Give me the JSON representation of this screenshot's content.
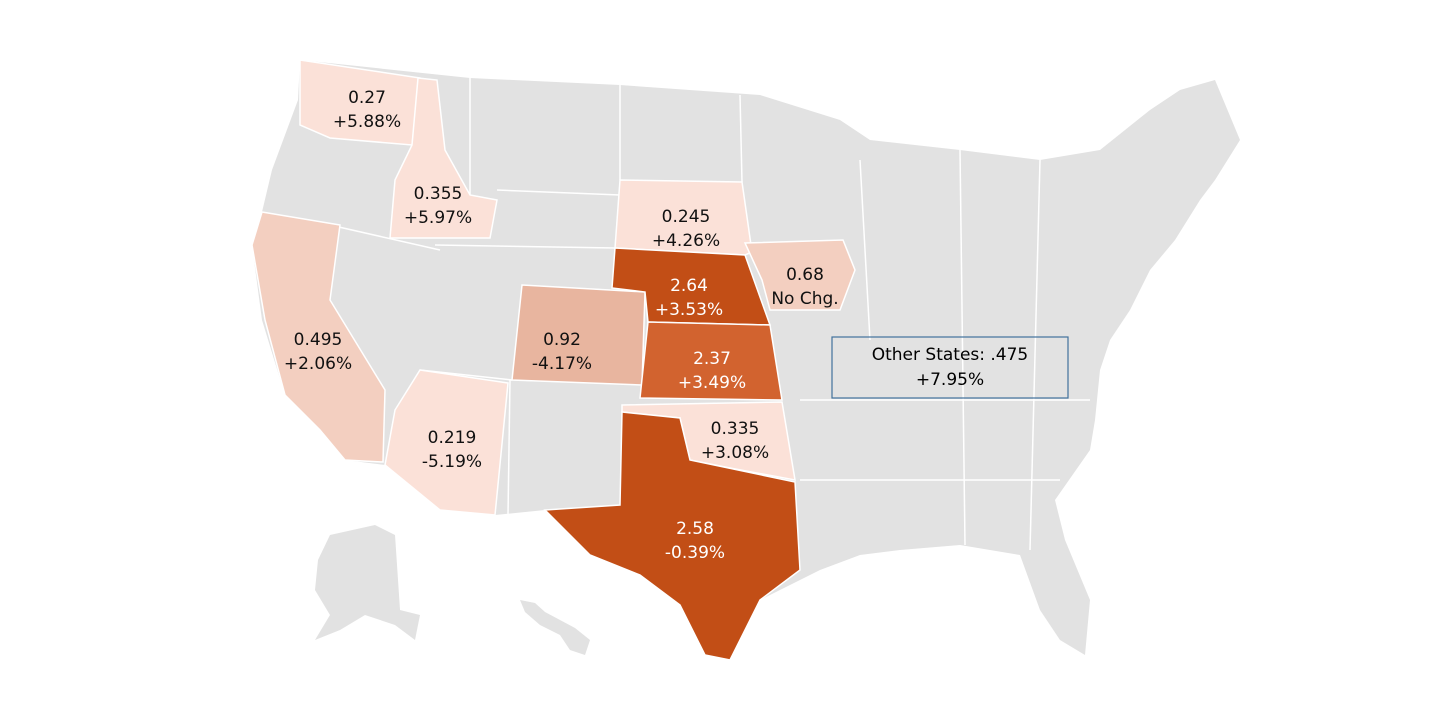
{
  "map": {
    "regions": [
      {
        "value": "0.27",
        "change": "+5.88%",
        "color": "#fbe1d8"
      },
      {
        "value": "0.355",
        "change": "+5.97%",
        "color": "#fbe1d8"
      },
      {
        "value": "0.495",
        "change": "+2.06%",
        "color": "#f3cfc0"
      },
      {
        "value": "0.219",
        "change": "-5.19%",
        "color": "#fbe1d8"
      },
      {
        "value": "0.92",
        "change": "-4.17%",
        "color": "#e8b59f"
      },
      {
        "value": "0.245",
        "change": "+4.26%",
        "color": "#fbe1d8"
      },
      {
        "value": "2.64",
        "change": "+3.53%",
        "color": "#c24e16"
      },
      {
        "value": "0.68",
        "change": "No Chg.",
        "color": "#f3cfc0"
      },
      {
        "value": "2.37",
        "change": "+3.49%",
        "color": "#d2632f"
      },
      {
        "value": "0.335",
        "change": "+3.08%",
        "color": "#fbe1d8"
      },
      {
        "value": "2.58",
        "change": "-0.39%",
        "color": "#c24e16"
      }
    ],
    "other": {
      "label": "Other States: .475",
      "change": "+7.95%"
    },
    "base_color": "#e2e2e2"
  }
}
